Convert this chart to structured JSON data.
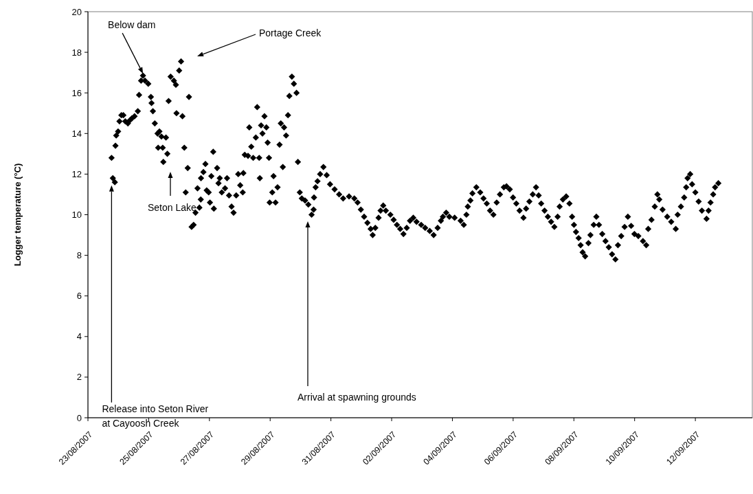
{
  "chart_data": {
    "type": "scatter",
    "ylabel": "Logger temperature (°C)",
    "marker": "diamond",
    "grid": false,
    "xlim": [
      "2007-08-23",
      "2007-09-13T21:00"
    ],
    "xticks": [
      {
        "value": "2007-08-23",
        "label": "23/08/2007"
      },
      {
        "value": "2007-08-25",
        "label": "25/08/2007"
      },
      {
        "value": "2007-08-27",
        "label": "27/08/2007"
      },
      {
        "value": "2007-08-29",
        "label": "29/08/2007"
      },
      {
        "value": "2007-08-31",
        "label": "31/08/2007"
      },
      {
        "value": "2007-09-02",
        "label": "02/09/2007"
      },
      {
        "value": "2007-09-04",
        "label": "04/09/2007"
      },
      {
        "value": "2007-09-06",
        "label": "06/09/2007"
      },
      {
        "value": "2007-09-08",
        "label": "08/09/2007"
      },
      {
        "value": "2007-09-10",
        "label": "10/09/2007"
      },
      {
        "value": "2007-09-12",
        "label": "12/09/2007"
      }
    ],
    "ylim": [
      0,
      20
    ],
    "yticks": [
      0,
      2,
      4,
      6,
      8,
      10,
      12,
      14,
      16,
      18,
      20
    ],
    "annotations": [
      {
        "text": "Below dam",
        "x": "2007-08-24T19:30",
        "y": 16.95
      },
      "Portage Creek",
      "Seton Lake",
      {
        "text": "Release into Seton River\nat Cayoosh Creek",
        "x": "2007-08-23T18:40",
        "y": 11.45
      },
      "Arrival at spawning grounds"
    ],
    "series": [
      {
        "color": "#000000",
        "x": [
          "2007-08-23T18:40",
          "2007-08-23T19:40",
          "2007-08-23T21:15",
          "2007-08-23T21:45",
          "2007-08-23T22:20",
          "2007-08-23T23:50",
          "2007-08-24T00:55",
          "2007-08-24T02:25",
          "2007-08-24T04:00",
          "2007-08-24T05:30",
          "2007-08-24T07:35",
          "2007-08-24T09:10",
          "2007-08-24T10:45",
          "2007-08-24T12:50",
          "2007-08-24T15:25",
          "2007-08-24T16:25",
          "2007-08-24T18:00",
          "2007-08-24T19:30",
          "2007-08-24T21:05",
          "2007-08-24T23:40",
          "2007-08-25T01:45",
          "2007-08-25T02:15",
          "2007-08-25T03:20",
          "2007-08-25T04:50",
          "2007-08-25T07:00",
          "2007-08-25T07:30",
          "2007-08-25T08:30",
          "2007-08-25T10:05",
          "2007-08-25T11:05",
          "2007-08-25T11:35",
          "2007-08-25T13:40",
          "2007-08-25T14:45",
          "2007-08-25T15:45",
          "2007-08-25T17:20",
          "2007-08-25T19:55",
          "2007-08-25T21:30",
          "2007-08-25T22:00",
          "2007-08-26T00:05",
          "2007-08-26T01:35",
          "2007-08-26T02:40",
          "2007-08-26T04:10",
          "2007-08-26T05:15",
          "2007-08-26T06:50",
          "2007-08-26T07:50",
          "2007-08-26T09:55",
          "2007-08-26T11:30",
          "2007-08-26T13:00",
          "2007-08-26T14:35",
          "2007-08-26T16:05",
          "2007-08-26T17:10",
          "2007-08-26T17:20",
          "2007-08-26T19:15",
          "2007-08-26T20:50",
          "2007-08-26T21:50",
          "2007-08-26T23:25",
          "2007-08-27T00:25",
          "2007-08-27T01:30",
          "2007-08-27T03:00",
          "2007-08-27T03:30",
          "2007-08-27T06:05",
          "2007-08-27T07:10",
          "2007-08-27T08:10",
          "2007-08-27T09:45",
          "2007-08-27T12:20",
          "2007-08-27T13:55",
          "2007-08-27T15:30",
          "2007-08-27T17:30",
          "2007-08-27T19:05",
          "2007-08-27T21:10",
          "2007-08-27T22:45",
          "2007-08-28T00:20",
          "2007-08-28T02:20",
          "2007-08-28T02:50",
          "2007-08-28T03:55",
          "2007-08-28T06:30",
          "2007-08-28T07:30",
          "2007-08-28T09:05",
          "2007-08-28T10:35",
          "2007-08-28T12:40",
          "2007-08-28T13:45",
          "2007-08-28T15:20",
          "2007-08-28T15:50",
          "2007-08-28T16:50",
          "2007-08-28T17:55",
          "2007-08-28T19:30",
          "2007-08-28T21:00",
          "2007-08-28T22:00",
          "2007-08-28T23:05",
          "2007-08-28T23:35",
          "2007-08-29T01:40",
          "2007-08-29T02:40",
          "2007-08-29T04:15",
          "2007-08-29T05:50",
          "2007-08-29T07:25",
          "2007-08-29T08:25",
          "2007-08-29T10:00",
          "2007-08-29T11:00",
          "2007-08-29T12:35",
          "2007-08-29T14:05",
          "2007-08-29T15:10",
          "2007-08-29T17:10",
          "2007-08-29T18:45",
          "2007-08-29T20:50",
          "2007-08-29T21:55",
          "2007-08-29T23:25",
          "2007-08-30T01:00",
          "2007-08-30T03:35",
          "2007-08-30T06:10",
          "2007-08-30T08:45",
          "2007-08-30T10:20",
          "2007-08-30T10:40",
          "2007-08-30T11:55",
          "2007-08-30T13:25",
          "2007-08-30T15:30",
          "2007-08-30T18:05",
          "2007-08-30T20:40",
          "2007-08-30T23:20",
          "2007-08-31T02:55",
          "2007-08-31T06:30",
          "2007-08-31T09:40",
          "2007-08-31T14:20",
          "2007-08-31T18:30",
          "2007-08-31T21:05",
          "2007-08-31T23:40",
          "2007-09-01T02:15",
          "2007-09-01T04:50",
          "2007-09-01T07:25",
          "2007-09-01T09:00",
          "2007-09-01T11:05",
          "2007-09-01T13:40",
          "2007-09-01T15:15",
          "2007-09-01T17:20",
          "2007-09-01T19:25",
          "2007-09-01T23:00",
          "2007-09-02T01:35",
          "2007-09-02T04:10",
          "2007-09-02T06:45",
          "2007-09-02T09:20",
          "2007-09-02T11:55",
          "2007-09-02T14:30",
          "2007-09-02T17:05",
          "2007-09-02T19:40",
          "2007-09-02T23:20",
          "2007-09-03T02:30",
          "2007-09-03T06:05",
          "2007-09-03T09:10",
          "2007-09-03T12:20",
          "2007-09-03T14:55",
          "2007-09-03T16:30",
          "2007-09-03T19:05",
          "2007-09-03T21:35",
          "2007-09-04T01:45",
          "2007-09-04T06:30",
          "2007-09-04T09:00",
          "2007-09-04T11:05",
          "2007-09-04T12:10",
          "2007-09-04T14:15",
          "2007-09-04T15:50",
          "2007-09-04T18:55",
          "2007-09-04T22:00",
          "2007-09-05T00:35",
          "2007-09-05T03:10",
          "2007-09-05T05:45",
          "2007-09-05T08:25",
          "2007-09-05T11:00",
          "2007-09-05T13:35",
          "2007-09-05T16:40",
          "2007-09-05T18:45",
          "2007-09-05T21:20",
          "2007-09-05T23:55",
          "2007-09-06T02:30",
          "2007-09-06T05:05",
          "2007-09-06T08:10",
          "2007-09-06T10:15",
          "2007-09-06T12:50",
          "2007-09-06T15:30",
          "2007-09-06T18:05",
          "2007-09-06T20:10",
          "2007-09-06T22:10",
          "2007-09-07T00:50",
          "2007-09-07T03:25",
          "2007-09-07T06:00",
          "2007-09-07T08:35",
          "2007-09-07T11:10",
          "2007-09-07T12:45",
          "2007-09-07T15:20",
          "2007-09-07T17:55",
          "2007-09-07T20:30",
          "2007-09-07T22:35",
          "2007-09-08T00:05",
          "2007-09-08T01:40",
          "2007-09-08T03:45",
          "2007-09-08T05:20",
          "2007-09-08T06:55",
          "2007-09-08T08:55",
          "2007-09-08T11:30",
          "2007-09-08T13:05",
          "2007-09-08T15:40",
          "2007-09-08T17:45",
          "2007-09-08T19:50",
          "2007-09-08T22:25",
          "2007-09-09T01:00",
          "2007-09-09T03:35",
          "2007-09-09T06:10",
          "2007-09-09T08:50",
          "2007-09-09T10:50",
          "2007-09-09T13:25",
          "2007-09-09T16:05",
          "2007-09-09T18:40",
          "2007-09-09T21:15",
          "2007-09-09T23:50",
          "2007-09-10T02:55",
          "2007-09-10T06:35",
          "2007-09-10T09:10",
          "2007-09-10T10:45",
          "2007-09-10T13:20",
          "2007-09-10T15:55",
          "2007-09-10T18:00",
          "2007-09-10T19:30",
          "2007-09-10T22:05",
          "2007-09-11T01:45",
          "2007-09-11T04:55",
          "2007-09-11T08:30",
          "2007-09-11T10:00",
          "2007-09-11T12:35",
          "2007-09-11T15:10",
          "2007-09-11T16:45",
          "2007-09-11T17:50",
          "2007-09-11T19:55",
          "2007-09-11T21:25",
          "2007-09-12T00:00",
          "2007-09-12T02:35",
          "2007-09-12T05:10",
          "2007-09-12T08:50",
          "2007-09-12T10:25",
          "2007-09-12T12:00",
          "2007-09-12T14:05",
          "2007-09-12T15:35",
          "2007-09-12T18:10"
        ],
        "values": [
          12.8,
          11.8,
          11.6,
          13.4,
          13.9,
          14.1,
          14.6,
          14.9,
          14.9,
          14.6,
          14.5,
          14.65,
          14.75,
          14.85,
          15.1,
          15.9,
          16.6,
          16.85,
          16.6,
          16.45,
          15.8,
          15.5,
          15.1,
          14.5,
          14.0,
          13.3,
          14.1,
          13.85,
          13.3,
          12.6,
          13.8,
          13.0,
          15.6,
          16.8,
          16.6,
          16.4,
          15.0,
          17.1,
          17.55,
          14.85,
          13.3,
          11.1,
          12.3,
          15.8,
          9.4,
          9.5,
          10.1,
          11.3,
          10.35,
          10.75,
          11.8,
          12.1,
          12.5,
          11.2,
          11.1,
          10.6,
          11.9,
          13.1,
          10.3,
          12.3,
          11.55,
          11.8,
          11.1,
          11.3,
          11.8,
          10.95,
          10.4,
          10.1,
          10.95,
          12.0,
          11.45,
          11.1,
          12.05,
          12.95,
          12.9,
          14.3,
          13.35,
          12.8,
          13.8,
          15.3,
          12.8,
          11.8,
          14.4,
          14.0,
          14.85,
          14.3,
          13.55,
          12.8,
          10.6,
          11.1,
          11.9,
          10.6,
          11.35,
          13.45,
          14.5,
          12.35,
          14.3,
          13.9,
          14.9,
          15.85,
          16.8,
          16.45,
          16.0,
          12.6,
          11.1,
          10.8,
          10.7,
          10.5,
          10.0,
          10.25,
          10.85,
          11.35,
          11.65,
          12.0,
          12.35,
          11.95,
          11.5,
          11.25,
          11.0,
          10.8,
          10.9,
          10.8,
          10.6,
          10.25,
          9.9,
          9.6,
          9.3,
          9.0,
          9.35,
          9.85,
          10.2,
          10.45,
          10.2,
          10.0,
          9.75,
          9.5,
          9.3,
          9.05,
          9.35,
          9.7,
          9.85,
          9.65,
          9.5,
          9.35,
          9.2,
          9.0,
          9.35,
          9.7,
          9.9,
          10.1,
          9.9,
          9.85,
          9.7,
          9.5,
          10.0,
          10.4,
          10.7,
          11.05,
          11.35,
          11.1,
          10.8,
          10.55,
          10.2,
          10.0,
          10.6,
          11.0,
          11.35,
          11.4,
          11.25,
          10.85,
          10.55,
          10.2,
          9.85,
          10.3,
          10.65,
          11.0,
          11.35,
          10.95,
          10.55,
          10.2,
          9.9,
          9.65,
          9.4,
          9.9,
          10.4,
          10.75,
          10.9,
          10.55,
          9.9,
          9.5,
          9.15,
          8.85,
          8.5,
          8.15,
          7.95,
          8.6,
          9.0,
          9.5,
          9.9,
          9.5,
          9.05,
          8.7,
          8.4,
          8.05,
          7.8,
          8.5,
          8.95,
          9.4,
          9.9,
          9.45,
          9.05,
          8.95,
          8.7,
          8.5,
          9.3,
          9.75,
          10.4,
          11.0,
          10.75,
          10.25,
          9.9,
          9.65,
          9.3,
          10.0,
          10.4,
          10.85,
          11.35,
          11.8,
          12.0,
          11.5,
          11.1,
          10.65,
          10.2,
          9.8,
          10.2,
          10.6,
          11.0,
          11.35,
          11.55
        ]
      }
    ]
  }
}
